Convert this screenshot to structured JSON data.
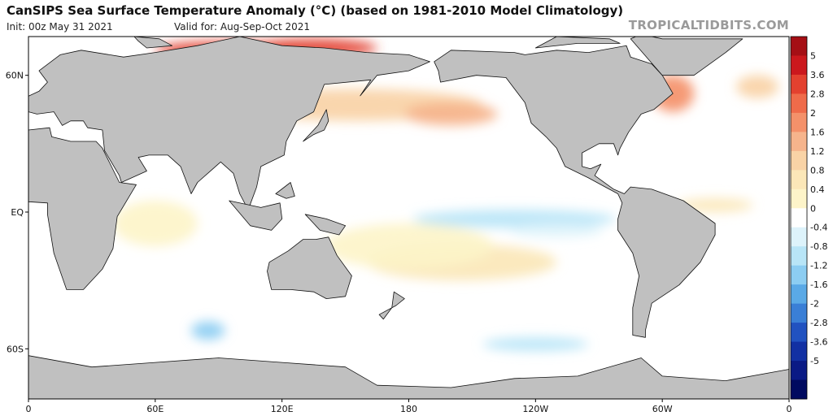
{
  "header": {
    "title": "CanSIPS Sea Surface Temperature Anomaly (°C) (based on 1981-2010 Model Climatology)",
    "init": "Init: 00z May 31 2021",
    "valid": "Valid for: Aug-Sep-Oct 2021",
    "brand": "TROPICALTIDBITS.COM"
  },
  "map": {
    "projection": "equirectangular",
    "lon_range": [
      0,
      360
    ],
    "lat_range": [
      -82,
      77
    ],
    "x_ticks": [
      {
        "lon": 0,
        "label": "0"
      },
      {
        "lon": 60,
        "label": "60E"
      },
      {
        "lon": 120,
        "label": "120E"
      },
      {
        "lon": 180,
        "label": "180"
      },
      {
        "lon": 240,
        "label": "120W"
      },
      {
        "lon": 300,
        "label": "60W"
      },
      {
        "lon": 360,
        "label": "0"
      }
    ],
    "y_ticks": [
      {
        "lat": 60,
        "label": "60N"
      },
      {
        "lat": 0,
        "label": "EQ"
      },
      {
        "lat": -60,
        "label": "60S"
      }
    ],
    "land_color": "#c0c0c0",
    "coast_color": "#111111",
    "ocean_color": "#ffffff"
  },
  "colorbar": {
    "labels": [
      "5",
      "3.6",
      "2.8",
      "2",
      "1.6",
      "1.2",
      "0.8",
      "0.4",
      "0",
      "-0.4",
      "-0.8",
      "-1.2",
      "-1.6",
      "-2",
      "-2.8",
      "-3.6",
      "-5"
    ],
    "colors": [
      "#a50f15",
      "#cb181d",
      "#e3412f",
      "#ef6b4a",
      "#f4916a",
      "#f6b48c",
      "#f9d3a6",
      "#fbe7b8",
      "#fdf4c9",
      "#ffffff",
      "#ddf3fb",
      "#b8e5f7",
      "#8ccdf2",
      "#5aa9e6",
      "#3a7fd6",
      "#2152c0",
      "#1230a3",
      "#0a1a85",
      "#000a60"
    ]
  },
  "anomalies": [
    {
      "lon": 95,
      "lat": 71,
      "rx": 35,
      "ry": 4,
      "value": 3.6
    },
    {
      "lon": 135,
      "lat": 72,
      "rx": 30,
      "ry": 4,
      "value": 3.6
    },
    {
      "lon": 155,
      "lat": 47,
      "rx": 60,
      "ry": 7,
      "value": 1.2
    },
    {
      "lon": 200,
      "lat": 43,
      "rx": 22,
      "ry": 5,
      "value": 1.6
    },
    {
      "lon": 305,
      "lat": 52,
      "rx": 10,
      "ry": 8,
      "value": 2.0
    },
    {
      "lon": 230,
      "lat": -3,
      "rx": 48,
      "ry": 4,
      "value": -0.8
    },
    {
      "lon": 250,
      "lat": -8,
      "rx": 22,
      "ry": 3,
      "value": -0.4
    },
    {
      "lon": 205,
      "lat": -22,
      "rx": 45,
      "ry": 8,
      "value": 0.8
    },
    {
      "lon": 180,
      "lat": -15,
      "rx": 40,
      "ry": 10,
      "value": 0.4
    },
    {
      "lon": 60,
      "lat": -5,
      "rx": 20,
      "ry": 10,
      "value": 0.4
    },
    {
      "lon": 85,
      "lat": -52,
      "rx": 8,
      "ry": 4,
      "value": -1.2
    },
    {
      "lon": 240,
      "lat": -58,
      "rx": 25,
      "ry": 3,
      "value": -0.8
    },
    {
      "lon": 345,
      "lat": 55,
      "rx": 10,
      "ry": 5,
      "value": 1.2
    },
    {
      "lon": 325,
      "lat": 3,
      "rx": 18,
      "ry": 3,
      "value": 0.8
    }
  ]
}
